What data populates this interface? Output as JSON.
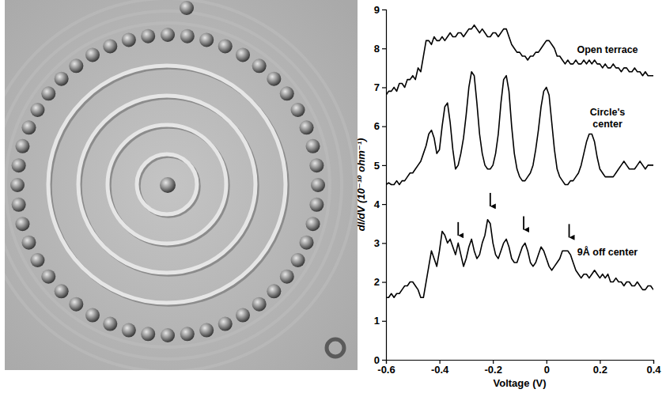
{
  "chart_data": {
    "type": "line",
    "x_label": "Voltage (V)",
    "y_label": "dI/dV (10⁻¹⁰ ohm⁻¹)",
    "xlim": [
      -0.6,
      0.4
    ],
    "xticks": [
      -0.6,
      -0.4,
      -0.2,
      0,
      0.2,
      0.4
    ],
    "ylim": [
      0,
      9
    ],
    "yticks": [
      0,
      1,
      2,
      3,
      4,
      5,
      6,
      7,
      8,
      9
    ],
    "x": [
      -0.6,
      -0.59,
      -0.58,
      -0.57,
      -0.56,
      -0.55,
      -0.54,
      -0.53,
      -0.52,
      -0.51,
      -0.5,
      -0.49,
      -0.48,
      -0.47,
      -0.46,
      -0.45,
      -0.44,
      -0.43,
      -0.42,
      -0.41,
      -0.4,
      -0.39,
      -0.38,
      -0.37,
      -0.36,
      -0.35,
      -0.34,
      -0.33,
      -0.32,
      -0.31,
      -0.3,
      -0.29,
      -0.28,
      -0.27,
      -0.26,
      -0.25,
      -0.24,
      -0.23,
      -0.22,
      -0.21,
      -0.2,
      -0.19,
      -0.18,
      -0.17,
      -0.16,
      -0.15,
      -0.14,
      -0.13,
      -0.12,
      -0.11,
      -0.1,
      -0.09,
      -0.08,
      -0.07,
      -0.06,
      -0.05,
      -0.04,
      -0.03,
      -0.02,
      -0.01,
      0,
      0.01,
      0.02,
      0.03,
      0.04,
      0.05,
      0.06,
      0.07,
      0.08,
      0.09,
      0.1,
      0.11,
      0.12,
      0.13,
      0.14,
      0.15,
      0.16,
      0.17,
      0.18,
      0.19,
      0.2,
      0.21,
      0.22,
      0.23,
      0.24,
      0.25,
      0.26,
      0.27,
      0.28,
      0.29,
      0.3,
      0.31,
      0.32,
      0.33,
      0.34,
      0.35,
      0.36,
      0.37,
      0.38,
      0.39,
      0.4
    ],
    "series": [
      {
        "name": "Open terrace",
        "color": "#000000",
        "values": [
          6.8,
          6.9,
          6.9,
          7.0,
          6.9,
          7.1,
          7.1,
          7.0,
          7.2,
          7.2,
          7.3,
          7.2,
          7.5,
          7.4,
          7.8,
          8.2,
          8.2,
          8.1,
          8.3,
          8.2,
          8.2,
          8.3,
          8.2,
          8.3,
          8.4,
          8.3,
          8.3,
          8.4,
          8.4,
          8.3,
          8.4,
          8.5,
          8.5,
          8.6,
          8.5,
          8.4,
          8.5,
          8.4,
          8.3,
          8.3,
          8.4,
          8.4,
          8.3,
          8.4,
          8.5,
          8.5,
          8.3,
          8.1,
          8.0,
          7.9,
          7.9,
          7.8,
          7.8,
          7.7,
          7.8,
          7.8,
          7.9,
          7.9,
          8.0,
          8.1,
          8.2,
          8.2,
          8.1,
          8.0,
          7.8,
          7.8,
          7.7,
          7.6,
          7.7,
          7.6,
          7.6,
          7.7,
          7.6,
          7.6,
          7.7,
          7.6,
          7.7,
          7.6,
          7.7,
          7.6,
          7.6,
          7.5,
          7.6,
          7.5,
          7.5,
          7.6,
          7.5,
          7.5,
          7.4,
          7.5,
          7.5,
          7.4,
          7.4,
          7.5,
          7.4,
          7.4,
          7.3,
          7.4,
          7.3,
          7.3,
          7.3
        ]
      },
      {
        "name": "Circle's center",
        "color": "#000000",
        "values": [
          4.5,
          4.55,
          4.5,
          4.5,
          4.6,
          4.5,
          4.6,
          4.6,
          4.7,
          4.8,
          4.8,
          4.9,
          5.0,
          5.1,
          5.3,
          5.5,
          5.8,
          5.9,
          5.7,
          5.3,
          5.4,
          6.0,
          6.5,
          6.6,
          6.1,
          5.4,
          4.9,
          5.0,
          5.3,
          5.7,
          6.3,
          7.0,
          7.4,
          7.3,
          6.6,
          5.8,
          5.3,
          5.0,
          4.9,
          4.9,
          5.0,
          5.3,
          5.8,
          6.6,
          7.2,
          7.3,
          6.9,
          6.0,
          5.3,
          4.9,
          4.7,
          4.6,
          4.6,
          4.7,
          4.8,
          5.0,
          5.4,
          5.9,
          6.5,
          6.9,
          7.0,
          6.8,
          6.1,
          5.4,
          4.9,
          4.7,
          4.6,
          4.5,
          4.5,
          4.6,
          4.6,
          4.7,
          4.8,
          5.0,
          5.3,
          5.6,
          5.8,
          5.8,
          5.6,
          5.2,
          4.9,
          4.8,
          4.7,
          4.7,
          4.7,
          4.7,
          4.8,
          4.9,
          5.0,
          5.1,
          5.0,
          4.9,
          4.9,
          4.9,
          5.0,
          5.1,
          5.0,
          4.9,
          5.0,
          5.0,
          5.0
        ]
      },
      {
        "name": "9Å off center",
        "color": "#000000",
        "values": [
          1.6,
          1.6,
          1.7,
          1.6,
          1.7,
          1.7,
          1.8,
          1.9,
          1.9,
          2.0,
          2.0,
          1.9,
          1.8,
          1.6,
          1.6,
          2.0,
          2.4,
          2.8,
          2.6,
          2.4,
          2.8,
          3.3,
          3.2,
          3.0,
          3.1,
          2.9,
          2.7,
          3.0,
          2.7,
          2.4,
          2.6,
          2.9,
          3.1,
          2.8,
          2.6,
          2.7,
          3.0,
          3.2,
          3.6,
          3.5,
          3.0,
          2.7,
          2.6,
          2.8,
          3.0,
          3.1,
          2.9,
          2.6,
          2.5,
          2.5,
          2.7,
          2.9,
          3.0,
          2.8,
          2.5,
          2.4,
          2.5,
          2.7,
          2.9,
          2.8,
          2.6,
          2.4,
          2.3,
          2.4,
          2.5,
          2.6,
          2.8,
          2.8,
          2.8,
          2.7,
          2.5,
          2.3,
          2.2,
          2.1,
          2.2,
          2.2,
          2.1,
          2.2,
          2.3,
          2.2,
          2.1,
          2.2,
          2.1,
          2.2,
          2.0,
          2.0,
          2.1,
          2.0,
          2.0,
          1.9,
          2.0,
          2.0,
          1.9,
          1.9,
          2.0,
          1.9,
          1.8,
          1.8,
          1.9,
          1.9,
          1.8
        ]
      }
    ],
    "arrows": [
      {
        "x": -0.33,
        "y": 3.05
      },
      {
        "x": -0.21,
        "y": 3.8
      },
      {
        "x": -0.085,
        "y": 3.2
      },
      {
        "x": 0.085,
        "y": 3.0
      }
    ]
  }
}
